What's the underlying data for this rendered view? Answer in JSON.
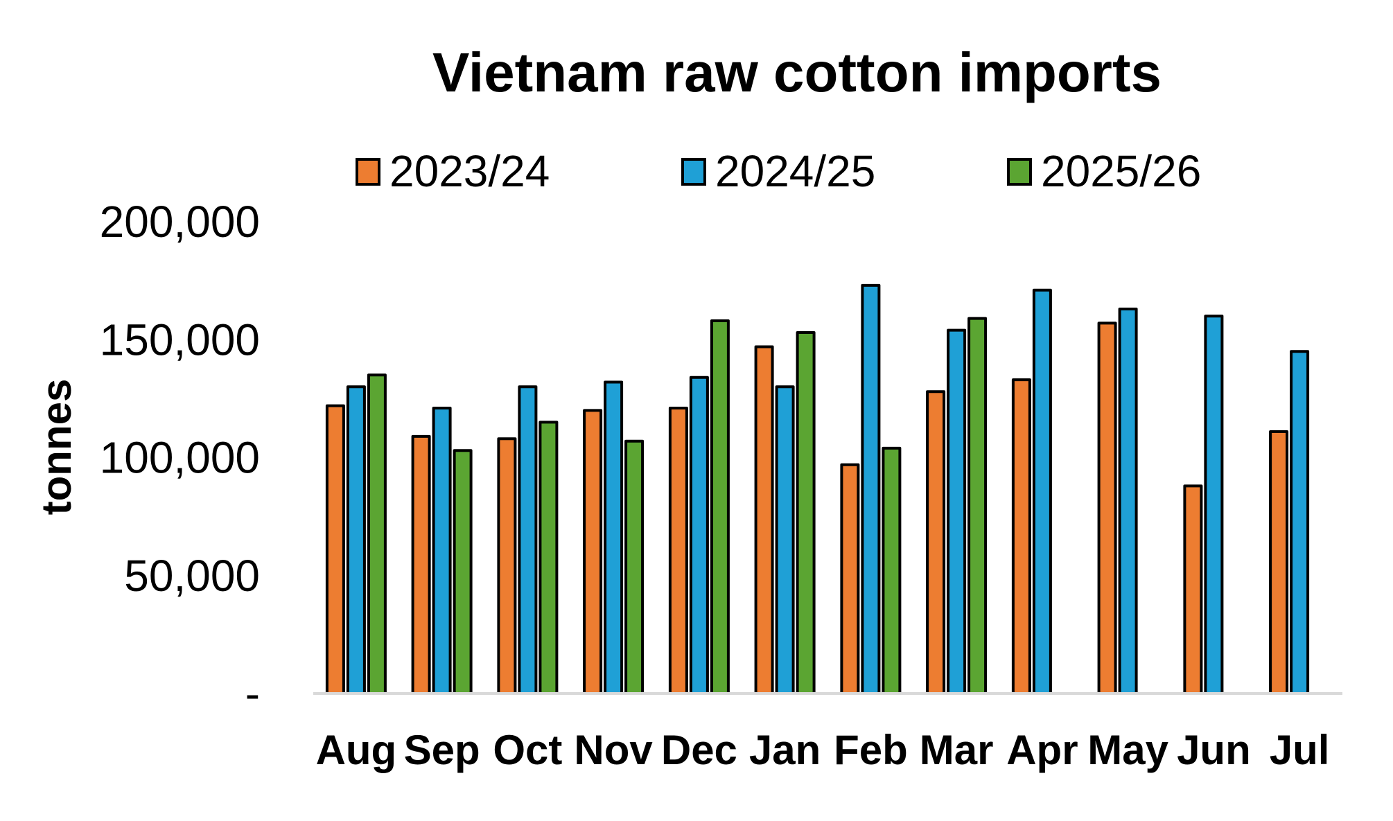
{
  "chart_data": {
    "type": "bar",
    "title": "Vietnam raw cotton imports",
    "xlabel": "",
    "ylabel": "tonnes",
    "ylim": [
      0,
      200000
    ],
    "yticks": [
      0,
      50000,
      100000,
      150000,
      200000
    ],
    "ytick_labels": [
      "-",
      "50,000",
      "100,000",
      "150,000",
      "200,000"
    ],
    "grid": false,
    "legend_position": "top",
    "categories": [
      "Aug",
      "Sep",
      "Oct",
      "Nov",
      "Dec",
      "Jan",
      "Feb",
      "Mar",
      "Apr",
      "May",
      "Jun",
      "Jul"
    ],
    "series": [
      {
        "name": "2023/24",
        "color": "#ED7D31",
        "values": [
          122000,
          109000,
          108000,
          120000,
          121000,
          147000,
          97000,
          128000,
          133000,
          157000,
          88000,
          111000
        ]
      },
      {
        "name": "2024/25",
        "color": "#1FA0D6",
        "values": [
          130000,
          121000,
          130000,
          132000,
          134000,
          130000,
          173000,
          154000,
          171000,
          163000,
          160000,
          145000
        ]
      },
      {
        "name": "2025/26",
        "color": "#5BA532",
        "values": [
          135000,
          103000,
          115000,
          107000,
          158000,
          153000,
          104000,
          159000,
          null,
          null,
          null,
          null
        ]
      }
    ]
  }
}
